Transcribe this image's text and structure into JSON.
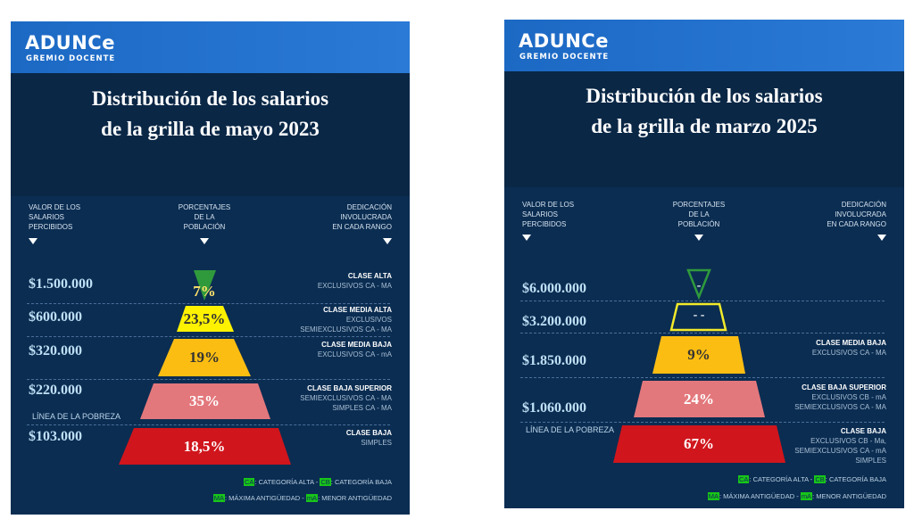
{
  "brand": {
    "name": "ADUNCe",
    "subtitle": "GREMIO DOCENTE"
  },
  "panels": [
    {
      "title": [
        "Distribución de los salarios",
        "de la grilla de mayo 2023"
      ],
      "headers": {
        "left": [
          "VALOR DE LOS",
          "SALARIOS",
          "PERCIBIDOS"
        ],
        "center": [
          "PORCENTAJES",
          "DE LA",
          "POBLACIÓN"
        ],
        "right": [
          "DEDICACIÓN",
          "INVOLUCRADA",
          "EN CADA RANGO"
        ]
      },
      "tiers": [
        {
          "salary": "$1.500.000",
          "pct": "7%",
          "color": "#2f9a3c",
          "text_color": "#ffe36a",
          "filled": true,
          "class_title": "CLASE ALTA",
          "lines": [
            "EXCLUSIVOS  CA - MA"
          ]
        },
        {
          "salary": "$600.000",
          "pct": "23,5%",
          "color": "#fff200",
          "text_color": "#333",
          "filled": true,
          "class_title": "CLASE MEDIA ALTA",
          "lines": [
            "EXCLUSIVOS",
            "SEMIEXCLUSIVOS  CA - MA"
          ]
        },
        {
          "salary": "$320.000",
          "pct": "19%",
          "color": "#fbbd12",
          "text_color": "#333",
          "filled": true,
          "class_title": "CLASE MEDIA BAJA",
          "lines": [
            "EXCLUSIVOS  CA - mA"
          ]
        },
        {
          "salary": "$220.000",
          "pct": "35%",
          "color": "#e3787c",
          "text_color": "#fff",
          "filled": true,
          "class_title": "CLASE  BAJA SUPERIOR",
          "lines": [
            "SEMIEXCLUSIVOS CA - MA",
            "SIMPLES CA - MA"
          ]
        },
        {
          "salary": "$103.000",
          "pct": "18,5%",
          "color": "#d0151c",
          "text_color": "#fff",
          "filled": true,
          "class_title": "CLASE BAJA",
          "lines": [
            "SIMPLES"
          ]
        }
      ],
      "poverty_line": "LÍNEA DE LA POBREZA",
      "legend": {
        "ca": "CA",
        "ca_text": ": CATEGORÍA ALTA  -  ",
        "cb": "CB",
        "cb_text": ": CATEGORÍA  BAJA",
        "ma": "MA",
        "ma_text": ": MÁXIMA ANTIGÜEDAD   -  ",
        "ma_minor": "mA",
        "ma_minor_text": ":  MENOR ANTIGÜEDAD"
      }
    },
    {
      "title": [
        "Distribución de los salarios",
        "de la grilla de marzo 2025"
      ],
      "headers": {
        "left": [
          "VALOR DE LOS",
          "SALARIOS",
          "PERCIBIDOS"
        ],
        "center": [
          "PORCENTAJES",
          "DE LA",
          "POBLACIÓN"
        ],
        "right": [
          "DEDICACIÓN",
          "INVOLUCRADA",
          "EN CADA RANGO"
        ]
      },
      "tiers": [
        {
          "salary": "$6.000.000",
          "pct": "-",
          "color": "#2f9a3c",
          "text_color": "#fff",
          "filled": false,
          "class_title": "",
          "lines": []
        },
        {
          "salary": "$3.200.000",
          "pct": "- -",
          "color": "#f2ea2a",
          "text_color": "#fff",
          "filled": false,
          "class_title": "",
          "lines": []
        },
        {
          "salary": "$1.850.000",
          "pct": "9%",
          "color": "#fbbd12",
          "text_color": "#333",
          "filled": true,
          "class_title": "CLASE MEDIA BAJA",
          "lines": [
            "EXCLUSIVOS  CA - MA"
          ]
        },
        {
          "salary": "$1.060.000",
          "pct": "24%",
          "color": "#e3787c",
          "text_color": "#fff",
          "filled": true,
          "class_title": "CLASE  BAJA SUPERIOR",
          "lines": [
            "EXCLUSIVOS CB - mA",
            "SEMIEXCLUSIVOS CA - MA"
          ]
        },
        {
          "salary": "",
          "pct": "67%",
          "color": "#d0151c",
          "text_color": "#fff",
          "filled": true,
          "class_title": "CLASE BAJA",
          "lines": [
            "EXCLUSIVOS   CB - Ma,",
            "SEMIEXCLUSIVOS CA - mA",
            "SIMPLES"
          ]
        }
      ],
      "poverty_line": "LÍNEA DE LA POBREZA",
      "legend": {
        "ca": "CA",
        "ca_text": ": CATEGORÍA ALTA  -  ",
        "cb": "CB",
        "cb_text": ": CATEGORÍA  BAJA",
        "ma": "MA",
        "ma_text": ": MÁXIMA ANTIGÜEDAD   -  ",
        "ma_minor": "mA",
        "ma_minor_text": ":  MENOR ANTIGÜEDAD"
      }
    }
  ]
}
